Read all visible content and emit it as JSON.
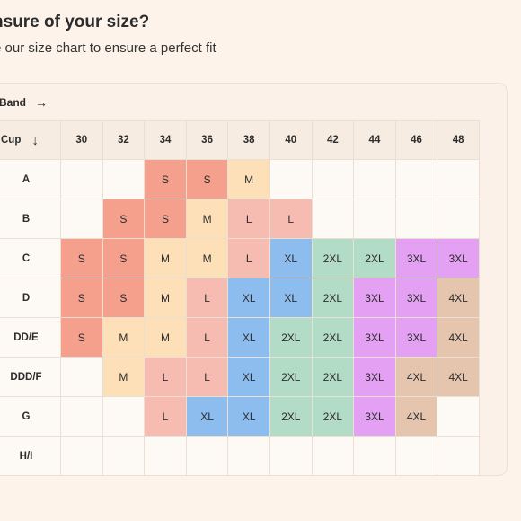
{
  "header": {
    "title": "nsure of your size?",
    "subtitle": "e our size chart to ensure a perfect fit"
  },
  "table": {
    "band_label": "Band",
    "band_arrow": "→",
    "cup_label": "Cup",
    "cup_arrow": "↓",
    "bands": [
      "30",
      "32",
      "34",
      "36",
      "38",
      "40",
      "42",
      "44",
      "46",
      "48"
    ],
    "rows": [
      {
        "cup": "A",
        "sizes": [
          "",
          "",
          "S",
          "S",
          "M",
          "",
          "",
          "",
          "",
          ""
        ]
      },
      {
        "cup": "B",
        "sizes": [
          "",
          "S",
          "S",
          "M",
          "L",
          "L",
          "",
          "",
          "",
          ""
        ]
      },
      {
        "cup": "C",
        "sizes": [
          "S",
          "S",
          "M",
          "M",
          "L",
          "XL",
          "2XL",
          "2XL",
          "3XL",
          "3XL"
        ]
      },
      {
        "cup": "D",
        "sizes": [
          "S",
          "S",
          "M",
          "L",
          "XL",
          "XL",
          "2XL",
          "3XL",
          "3XL",
          "4XL"
        ]
      },
      {
        "cup": "DD/E",
        "sizes": [
          "S",
          "M",
          "M",
          "L",
          "XL",
          "2XL",
          "2XL",
          "3XL",
          "3XL",
          "4XL"
        ]
      },
      {
        "cup": "DDD/F",
        "sizes": [
          "",
          "M",
          "L",
          "L",
          "XL",
          "2XL",
          "2XL",
          "3XL",
          "4XL",
          "4XL"
        ]
      },
      {
        "cup": "G",
        "sizes": [
          "",
          "",
          "L",
          "XL",
          "XL",
          "2XL",
          "2XL",
          "3XL",
          "4XL",
          ""
        ]
      },
      {
        "cup": "H/I",
        "sizes": [
          "",
          "",
          "",
          "",
          "",
          "",
          "",
          "",
          "",
          ""
        ]
      }
    ]
  },
  "colors": {
    "S": "#f4a08c",
    "M": "#fde0b8",
    "L": "#f6bcb1",
    "XL": "#8dbcef",
    "2XL": "#b2dcc6",
    "3XL": "#e4a0f2",
    "4XL": "#e6c5ae",
    "empty": "#fdf9f4"
  }
}
